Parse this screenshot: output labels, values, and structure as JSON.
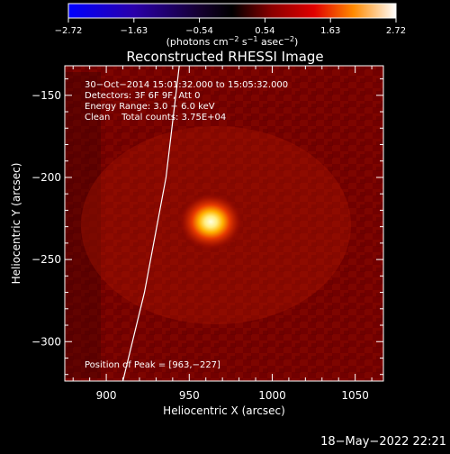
{
  "chart_data": {
    "type": "heatmap",
    "title": "Reconstructed RHESSI Image",
    "xlabel": "Heliocentric X (arcsec)",
    "ylabel": "Heliocentric Y (arcsec)",
    "xlim": [
      875,
      1067
    ],
    "ylim": [
      -324,
      -132
    ],
    "xticks": [
      900,
      950,
      1000,
      1050
    ],
    "yticks": [
      -150,
      -200,
      -250,
      -300
    ],
    "xtick_labels": [
      "900",
      "950",
      "1000",
      "1050"
    ],
    "ytick_labels": [
      "−150",
      "−200",
      "−250",
      "−300"
    ],
    "peak": {
      "x": 963,
      "y": -227
    },
    "colorbar": {
      "min": -2.72,
      "max": 2.72,
      "ticks": [
        "−2.72",
        "−1.63",
        "−0.54",
        "0.54",
        "1.63",
        "2.72"
      ],
      "unit_prefix": "(photons cm",
      "unit_sup1": "−2",
      "unit_mid": " s",
      "unit_sup2": "−1",
      "unit_mid2": " asec",
      "unit_sup3": "−2",
      "unit_suffix": ")"
    },
    "annotations": [
      "30−Oct−2014 15:01:32.000 to 15:05:32.000",
      "Detectors: 3F 6F 9F, Att 0",
      "Energy Range: 3.0 − 6.0 keV",
      "Clean    Total counts: 3.75E+04"
    ],
    "peak_label": "Position of Peak = [963,−227]",
    "limb": [
      [
        944,
        -132
      ],
      [
        936,
        -200
      ],
      [
        923,
        -270
      ],
      [
        910,
        -324
      ]
    ]
  },
  "footer_date": "18−May−2022 22:21"
}
